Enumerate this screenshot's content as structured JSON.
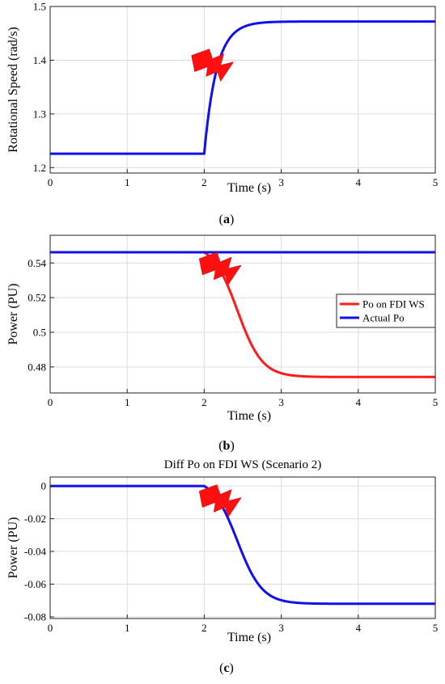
{
  "chart_data": [
    {
      "id": "a",
      "type": "line",
      "panel_label": "a",
      "title": "",
      "xlabel": "Time (s)",
      "ylabel": "Rotational Speed (rad/s)",
      "xlim": [
        0,
        5
      ],
      "ylim": [
        1.19,
        1.5
      ],
      "xticks": [
        0,
        1,
        2,
        3,
        4,
        5
      ],
      "yticks": [
        1.2,
        1.3,
        1.4,
        1.5
      ],
      "ytick_labels": [
        "1.2",
        "1.3",
        "1.4",
        "1.5"
      ],
      "grid": true,
      "legend": null,
      "fault_marker": {
        "near_x": 2.15
      },
      "series": [
        {
          "name": "",
          "color": "#1010ee",
          "shape": "step_rise",
          "baseline": 1.226,
          "final": 1.472,
          "t0": 2.0,
          "tau": 0.16,
          "x": [
            0,
            1,
            2,
            2.1,
            2.2,
            2.4,
            2.6,
            2.8,
            3,
            4,
            5
          ],
          "y": [
            1.226,
            1.227,
            1.227,
            1.3,
            1.38,
            1.44,
            1.462,
            1.469,
            1.471,
            1.472,
            1.472
          ]
        }
      ]
    },
    {
      "id": "b",
      "type": "line",
      "panel_label": "b",
      "title": "",
      "xlabel": "Time (s)",
      "ylabel": "Power (PU)",
      "xlim": [
        0,
        5
      ],
      "ylim": [
        0.465,
        0.556
      ],
      "xticks": [
        0,
        1,
        2,
        3,
        4,
        5
      ],
      "yticks": [
        0.48,
        0.5,
        0.52,
        0.54
      ],
      "ytick_labels": [
        "0.48",
        "0.5",
        "0.52",
        "0.54"
      ],
      "grid": true,
      "legend": "right",
      "fault_marker": {
        "near_x": 2.25
      },
      "series": [
        {
          "name": "Po on FDI WS",
          "color": "#ff1a1a",
          "shape": "sigmoid_fall",
          "baseline": 0.5462,
          "final": 0.4742,
          "t0": 2.0,
          "x": [
            0,
            1,
            2,
            2.1,
            2.2,
            2.4,
            2.6,
            2.8,
            3,
            4,
            5
          ],
          "y": [
            0.5462,
            0.5462,
            0.5462,
            0.538,
            0.522,
            0.495,
            0.481,
            0.4755,
            0.4745,
            0.4742,
            0.4742
          ]
        },
        {
          "name": "Actual Po",
          "color": "#1010ee",
          "shape": "flat",
          "baseline": 0.5462,
          "x": [
            0,
            5
          ],
          "y": [
            0.5462,
            0.5462
          ]
        }
      ]
    },
    {
      "id": "c",
      "type": "line",
      "panel_label": "c",
      "title": "Diff Po on FDI WS (Scenario 2)",
      "xlabel": "Time (s)",
      "ylabel": "Power (PU)",
      "xlim": [
        0,
        5
      ],
      "ylim": [
        -0.081,
        0.0055
      ],
      "xticks": [
        0,
        1,
        2,
        3,
        4,
        5
      ],
      "yticks": [
        -0.08,
        -0.06,
        -0.04,
        -0.02,
        0
      ],
      "ytick_labels": [
        "-0.08",
        "-0.06",
        "-0.04",
        "-0.02",
        "0"
      ],
      "grid": true,
      "legend": null,
      "fault_marker": {
        "near_x": 2.25
      },
      "series": [
        {
          "name": "",
          "color": "#1010ee",
          "shape": "sigmoid_fall",
          "baseline": 0,
          "final": -0.072,
          "t0": 2.0,
          "x": [
            0,
            1,
            2,
            2.1,
            2.2,
            2.4,
            2.6,
            2.8,
            3,
            4,
            5
          ],
          "y": [
            0,
            0,
            0,
            -0.008,
            -0.024,
            -0.051,
            -0.065,
            -0.0705,
            -0.0715,
            -0.072,
            -0.072
          ]
        }
      ]
    }
  ]
}
